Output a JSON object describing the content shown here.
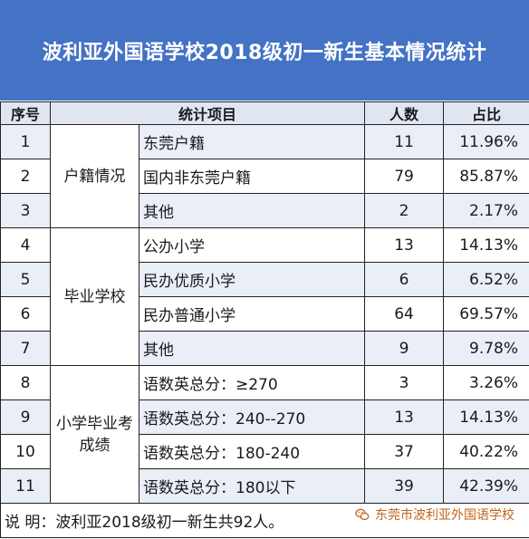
{
  "title": "波利亚外国语学校2018级初一新生基本情况统计",
  "header": {
    "no": "序号",
    "item": "统计项目",
    "count": "人数",
    "pct": "占比"
  },
  "categories": {
    "huji": "户籍情况",
    "school": "毕业学校",
    "exam_line1": "小学毕业考",
    "exam_line2": "成绩"
  },
  "rows": [
    {
      "no": "1",
      "item": "东莞户籍",
      "count": "11",
      "pct": "11.96%"
    },
    {
      "no": "2",
      "item": "国内非东莞户籍",
      "count": "79",
      "pct": "85.87%"
    },
    {
      "no": "3",
      "item": "其他",
      "count": "2",
      "pct": "2.17%"
    },
    {
      "no": "4",
      "item": "公办小学",
      "count": "13",
      "pct": "14.13%"
    },
    {
      "no": "5",
      "item": "民办优质小学",
      "count": "6",
      "pct": "6.52%"
    },
    {
      "no": "6",
      "item": "民办普通小学",
      "count": "64",
      "pct": "69.57%"
    },
    {
      "no": "7",
      "item": "其他",
      "count": "9",
      "pct": "9.78%"
    },
    {
      "no": "8",
      "item": "语数英总分：≥270",
      "count": "3",
      "pct": "3.26%"
    },
    {
      "no": "9",
      "item": "语数英总分：240--270",
      "count": "13",
      "pct": "14.13%"
    },
    {
      "no": "10",
      "item": "语数英总分：180-240",
      "count": "37",
      "pct": "40.22%"
    },
    {
      "no": "11",
      "item": "语数英总分：180以下",
      "count": "39",
      "pct": "42.39%"
    }
  ],
  "note": "说 明：波利亚2018级初一新生共92人。",
  "watermark": {
    "text": "东莞市波利亚外国语学校",
    "icon": "wechat-icon"
  }
}
